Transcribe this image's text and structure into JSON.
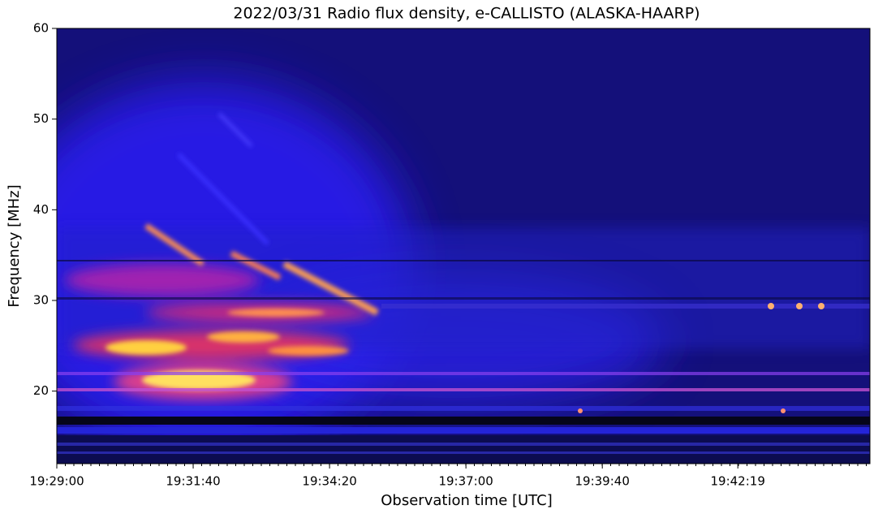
{
  "chart_data": {
    "type": "spectrogram",
    "title": "2022/03/31  Radio flux density, e-CALLISTO (ALASKA-HAARP)",
    "x_label": "Observation time [UTC]",
    "y_label": "Frequency [MHz]",
    "xlim": [
      "19:29:00",
      "19:44:54"
    ],
    "xticks": [
      "19:29:00",
      "19:31:40",
      "19:34:20",
      "19:37:00",
      "19:39:40",
      "19:42:19"
    ],
    "ylim": [
      12,
      60
    ],
    "yticks": [
      20,
      30,
      40,
      50,
      60
    ]
  }
}
